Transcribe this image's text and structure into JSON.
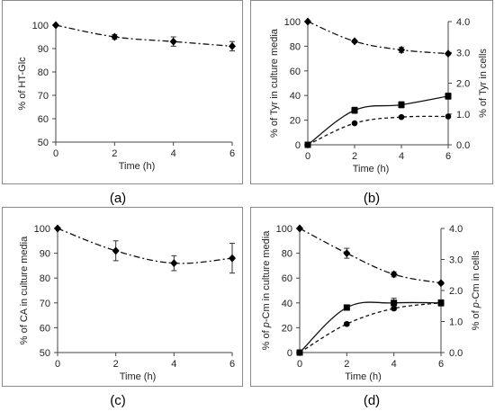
{
  "chart_data": [
    {
      "panel": "(a)",
      "type": "line",
      "xlabel": "Time (h)",
      "ylabel": "% of HT-Glc",
      "xlim": [
        0,
        6
      ],
      "ylim": [
        50,
        100
      ],
      "xticks": [
        0,
        2,
        4,
        6
      ],
      "yticks": [
        50,
        60,
        70,
        80,
        90,
        100
      ],
      "series": [
        {
          "marker": "diamond",
          "style": "dashdot",
          "x": [
            0,
            2,
            4,
            6
          ],
          "y": [
            100,
            95,
            93,
            91
          ],
          "err": [
            0,
            1,
            2,
            2
          ]
        }
      ]
    },
    {
      "panel": "(b)",
      "type": "line",
      "xlabel": "Time (h)",
      "ylabel": "% of Tyr in culture media",
      "y2label": "% of Tyr in cells",
      "xlim": [
        0,
        6
      ],
      "ylim": [
        0,
        100
      ],
      "y2lim": [
        0,
        4
      ],
      "xticks": [
        0,
        2,
        4,
        6
      ],
      "yticks": [
        0,
        20,
        40,
        60,
        80,
        100
      ],
      "y2ticks": [
        "0.0",
        "1.0",
        "2.0",
        "3.0",
        "4.0"
      ],
      "series": [
        {
          "marker": "diamond",
          "style": "dashdot",
          "axis": "left",
          "x": [
            0,
            2,
            4,
            6
          ],
          "y": [
            100,
            84,
            77,
            74
          ],
          "err": [
            0,
            1,
            2,
            1
          ]
        },
        {
          "marker": "square",
          "style": "solid",
          "axis": "right",
          "x": [
            0,
            2,
            4,
            6
          ],
          "y": [
            0.0,
            1.12,
            1.3,
            1.58
          ],
          "err": [
            0,
            0.1,
            0.1,
            0.1
          ]
        },
        {
          "marker": "circle",
          "style": "dashed",
          "axis": "right",
          "x": [
            0,
            2,
            4,
            6
          ],
          "y": [
            0.0,
            0.7,
            0.9,
            0.92
          ],
          "err": [
            0,
            0.03,
            0.03,
            0.03
          ]
        }
      ]
    },
    {
      "panel": "(c)",
      "type": "line",
      "xlabel": "Time (h)",
      "ylabel": "% of CA in culture media",
      "xlim": [
        0,
        6
      ],
      "ylim": [
        50,
        100
      ],
      "xticks": [
        0,
        2,
        4,
        6
      ],
      "yticks": [
        50,
        60,
        70,
        80,
        90,
        100
      ],
      "series": [
        {
          "marker": "diamond",
          "style": "dashdot",
          "x": [
            0,
            2,
            4,
            6
          ],
          "y": [
            100,
            91,
            86,
            88
          ],
          "err": [
            0,
            4,
            3,
            6
          ]
        }
      ]
    },
    {
      "panel": "(d)",
      "type": "line",
      "xlabel": "Time (h)",
      "ylabel": "% of p-Cm in culture media",
      "y2label": "% of p-Cm in cells",
      "xlim": [
        0,
        6
      ],
      "ylim": [
        0,
        100
      ],
      "y2lim": [
        0,
        4
      ],
      "xticks": [
        0,
        2,
        4,
        6
      ],
      "yticks": [
        0,
        20,
        40,
        60,
        80,
        100
      ],
      "y2ticks": [
        "0.0",
        "1.0",
        "2.0",
        "3.0",
        "4.0"
      ],
      "series": [
        {
          "marker": "diamond",
          "style": "dashdot",
          "axis": "left",
          "x": [
            0,
            2,
            4,
            6
          ],
          "y": [
            100,
            80,
            63,
            56
          ],
          "err": [
            0,
            4,
            2,
            1
          ]
        },
        {
          "marker": "square",
          "style": "solid",
          "axis": "right",
          "x": [
            0,
            2,
            4,
            6
          ],
          "y": [
            0.0,
            1.45,
            1.6,
            1.6
          ],
          "err": [
            0,
            0.05,
            0.15,
            0.1
          ]
        },
        {
          "marker": "circle",
          "style": "dashed",
          "axis": "right",
          "x": [
            0,
            2,
            4,
            6
          ],
          "y": [
            0.0,
            0.92,
            1.42,
            1.6
          ],
          "err": [
            0,
            0.05,
            0.05,
            0.05
          ]
        }
      ]
    }
  ],
  "panel_labels": [
    "(a)",
    "(b)",
    "(c)",
    "(d)"
  ]
}
